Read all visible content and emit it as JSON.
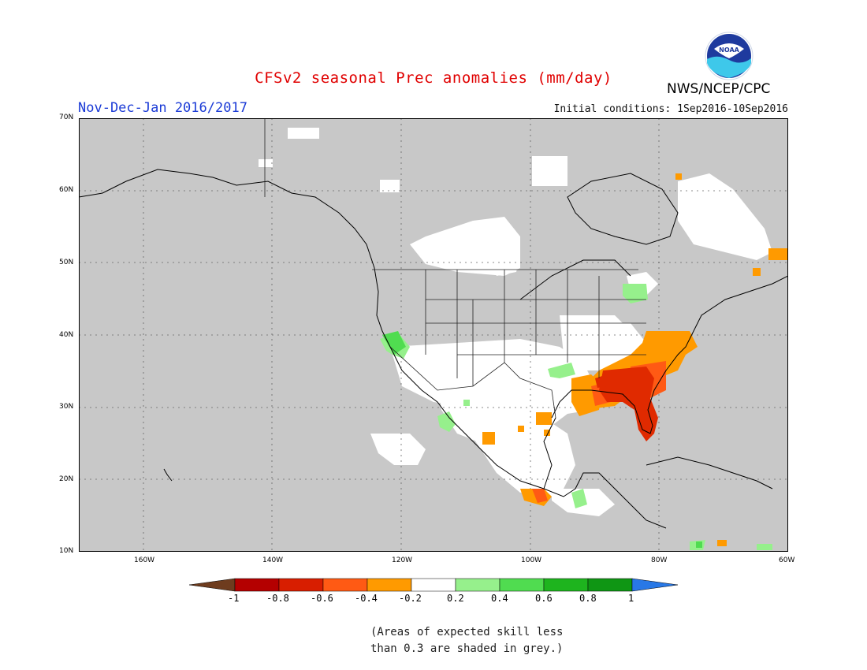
{
  "header": {
    "title": "CFSv2 seasonal Prec anomalies (mm/day)",
    "period": "Nov-Dec-Jan 2016/2017",
    "initial_conditions": "Initial conditions: 1Sep2016-10Sep2016",
    "agency": "NWS/NCEP/CPC",
    "logo_text": "NOAA"
  },
  "map": {
    "region": "North America",
    "lon_range": [
      -170,
      -60
    ],
    "lat_range": [
      10,
      70
    ],
    "lat_labels": [
      "70N",
      "60N",
      "50N",
      "40N",
      "30N",
      "20N",
      "10N"
    ],
    "lon_labels": [
      "160W",
      "140W",
      "120W",
      "100W",
      "80W",
      "60W"
    ],
    "background_color": "#c8c8c8",
    "grid": "dotted"
  },
  "legend": {
    "tick_labels": [
      "-1",
      "-0.8",
      "-0.6",
      "-0.4",
      "-0.2",
      "0.2",
      "0.4",
      "0.6",
      "0.8",
      "1"
    ],
    "colors": [
      "#6e3c1e",
      "#b40000",
      "#d81e00",
      "#ff5a14",
      "#ff9a00",
      "#ffffff",
      "#96f08c",
      "#50dc50",
      "#1eb41e",
      "#0f9614",
      "#2878e6"
    ]
  },
  "note": {
    "line1": "(Areas of expected skill less",
    "line2": "than 0.3 are shaded in grey.)"
  }
}
